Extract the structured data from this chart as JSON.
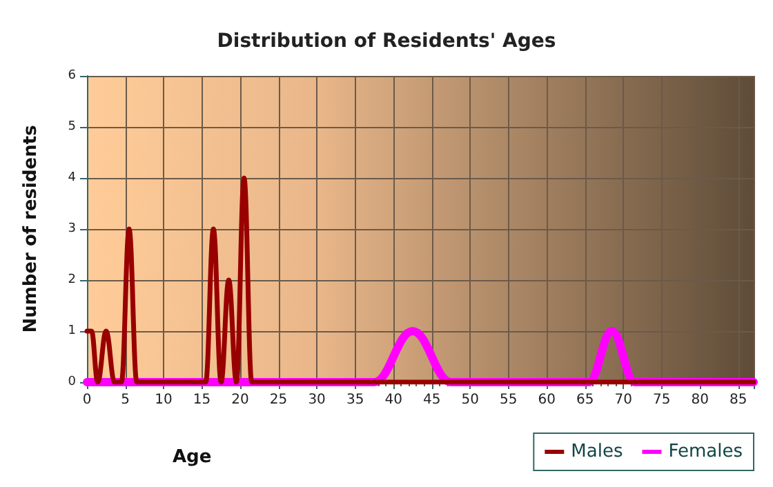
{
  "chart_data": {
    "type": "line",
    "title": "Distribution of Residents' Ages",
    "xlabel": "Age",
    "ylabel": "Number of residents",
    "xlim": [
      0,
      87
    ],
    "xticks": [
      0,
      5,
      10,
      15,
      20,
      25,
      30,
      35,
      40,
      45,
      50,
      55,
      60,
      65,
      70,
      75,
      80,
      85
    ],
    "ylim": [
      0,
      6
    ],
    "yticks": [
      0,
      1,
      2,
      3,
      4,
      5,
      6
    ],
    "grid": true,
    "legend": "bottom right",
    "marker": "none",
    "line_style": "solid",
    "series": [
      {
        "name": "Males",
        "color": "#990000",
        "x": [
          0,
          0.6,
          1.4,
          2.5,
          3.6,
          4.5,
          5.5,
          6.5,
          15.5,
          16.5,
          17.5,
          18.5,
          19.5,
          20.5,
          21.5,
          87
        ],
        "values": [
          1,
          1,
          0,
          1,
          0,
          0,
          3,
          0,
          0,
          3,
          0,
          2,
          0,
          4,
          0,
          0
        ]
      },
      {
        "name": "Females",
        "color": "#ff00ff",
        "x": [
          0,
          37.5,
          42.5,
          47.5,
          65.5,
          68.5,
          71.5,
          87
        ],
        "values": [
          0,
          0,
          1,
          0,
          0,
          1,
          0,
          0
        ]
      }
    ]
  }
}
